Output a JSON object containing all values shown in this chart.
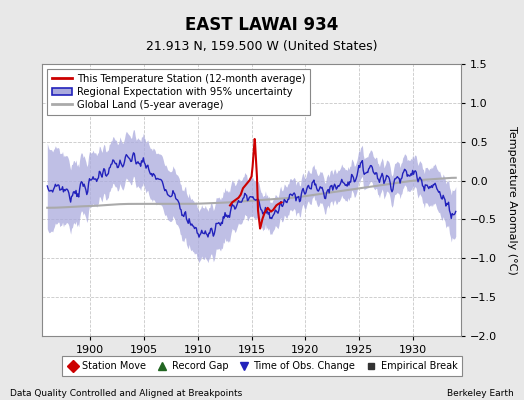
{
  "title": "EAST LAWAI 934",
  "subtitle": "21.913 N, 159.500 W (United States)",
  "ylabel": "Temperature Anomaly (°C)",
  "xlabel_left": "Data Quality Controlled and Aligned at Breakpoints",
  "xlabel_right": "Berkeley Earth",
  "ylim": [
    -2.0,
    1.5
  ],
  "xlim": [
    1895.5,
    1934.5
  ],
  "xticks": [
    1900,
    1905,
    1910,
    1915,
    1920,
    1925,
    1930
  ],
  "yticks": [
    -2.0,
    -1.5,
    -1.0,
    -0.5,
    0.0,
    0.5,
    1.0,
    1.5
  ],
  "bg_color": "#e8e8e8",
  "plot_bg_color": "#ffffff",
  "grid_color": "#c8c8c8",
  "regional_color": "#2222bb",
  "regional_fill_color": "#aaaadd",
  "station_color": "#cc0000",
  "global_color": "#aaaaaa",
  "legend_labels": [
    "This Temperature Station (12-month average)",
    "Regional Expectation with 95% uncertainty",
    "Global Land (5-year average)"
  ],
  "bottom_legend": [
    {
      "label": "Station Move",
      "color": "#cc0000",
      "marker": "D"
    },
    {
      "label": "Record Gap",
      "color": "#226622",
      "marker": "^"
    },
    {
      "label": "Time of Obs. Change",
      "color": "#2222bb",
      "marker": "v"
    },
    {
      "label": "Empirical Break",
      "color": "#333333",
      "marker": "s"
    }
  ],
  "regional_years": [
    1896,
    1897,
    1898,
    1899,
    1900,
    1901,
    1902,
    1903,
    1904,
    1905,
    1906,
    1907,
    1908,
    1909,
    1910,
    1911,
    1912,
    1913,
    1914,
    1915,
    1916,
    1917,
    1918,
    1919,
    1920,
    1921,
    1922,
    1923,
    1924,
    1925,
    1926,
    1927,
    1928,
    1929,
    1930,
    1931,
    1932,
    1933,
    1934
  ],
  "regional_vals": [
    -0.15,
    -0.05,
    -0.18,
    -0.1,
    -0.05,
    0.1,
    0.18,
    0.22,
    0.28,
    0.2,
    0.05,
    -0.1,
    -0.15,
    -0.55,
    -0.65,
    -0.7,
    -0.55,
    -0.38,
    -0.25,
    -0.2,
    -0.38,
    -0.45,
    -0.3,
    -0.18,
    -0.12,
    -0.08,
    -0.15,
    -0.05,
    0.0,
    0.12,
    0.18,
    0.05,
    0.0,
    0.05,
    0.1,
    0.0,
    -0.05,
    -0.3,
    -0.42
  ],
  "uncertainty": [
    0.55,
    0.48,
    0.42,
    0.38,
    0.35,
    0.32,
    0.3,
    0.3,
    0.3,
    0.32,
    0.33,
    0.32,
    0.32,
    0.33,
    0.33,
    0.33,
    0.33,
    0.32,
    0.28,
    0.25,
    0.22,
    0.2,
    0.2,
    0.2,
    0.2,
    0.2,
    0.2,
    0.2,
    0.2,
    0.2,
    0.2,
    0.2,
    0.2,
    0.2,
    0.2,
    0.22,
    0.25,
    0.28,
    0.32
  ],
  "station_years": [
    1913.0,
    1913.2,
    1913.5,
    1913.8,
    1914.0,
    1914.2,
    1914.5,
    1914.8,
    1915.0,
    1915.1,
    1915.2,
    1915.3,
    1915.5,
    1915.6,
    1915.8,
    1916.0,
    1916.2,
    1916.5,
    1916.8,
    1917.0,
    1917.3,
    1917.5,
    1917.8
  ],
  "station_vals": [
    -0.32,
    -0.28,
    -0.25,
    -0.22,
    -0.18,
    -0.1,
    -0.05,
    0.0,
    0.05,
    0.18,
    0.38,
    0.55,
    0.08,
    -0.38,
    -0.62,
    -0.5,
    -0.42,
    -0.35,
    -0.4,
    -0.38,
    -0.32,
    -0.3,
    -0.28
  ],
  "global_years": [
    1896,
    1897,
    1898,
    1899,
    1900,
    1901,
    1902,
    1903,
    1904,
    1905,
    1906,
    1907,
    1908,
    1909,
    1910,
    1911,
    1912,
    1913,
    1914,
    1915,
    1916,
    1917,
    1918,
    1919,
    1920,
    1921,
    1922,
    1923,
    1924,
    1925,
    1926,
    1927,
    1928,
    1929,
    1930,
    1931,
    1932,
    1933,
    1934
  ],
  "global_vals": [
    -0.35,
    -0.35,
    -0.34,
    -0.33,
    -0.33,
    -0.32,
    -0.31,
    -0.3,
    -0.3,
    -0.3,
    -0.3,
    -0.3,
    -0.3,
    -0.3,
    -0.3,
    -0.29,
    -0.29,
    -0.28,
    -0.27,
    -0.26,
    -0.25,
    -0.24,
    -0.23,
    -0.22,
    -0.2,
    -0.18,
    -0.16,
    -0.14,
    -0.12,
    -0.1,
    -0.08,
    -0.06,
    -0.04,
    -0.02,
    0.0,
    0.01,
    0.02,
    0.03,
    0.04
  ]
}
